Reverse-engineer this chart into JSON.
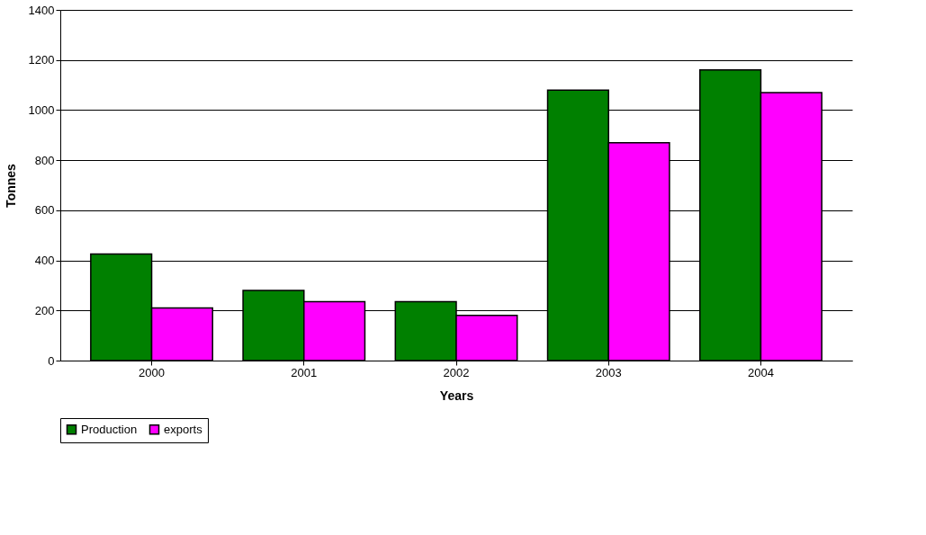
{
  "chart_data": {
    "type": "bar",
    "xlabel": "Years",
    "ylabel": "Tonnes",
    "categories": [
      "2000",
      "2001",
      "2002",
      "2003",
      "2004"
    ],
    "series": [
      {
        "name": "Production",
        "color": "#008000",
        "values": [
          425,
          280,
          235,
          1080,
          1160
        ]
      },
      {
        "name": "exports",
        "color": "#ff00ff",
        "values": [
          210,
          235,
          180,
          870,
          1070
        ]
      }
    ],
    "ylim": [
      0,
      1400
    ],
    "yticks": [
      0,
      200,
      400,
      600,
      800,
      1000,
      1200,
      1400
    ],
    "grid": "y",
    "legend": "bottom"
  }
}
